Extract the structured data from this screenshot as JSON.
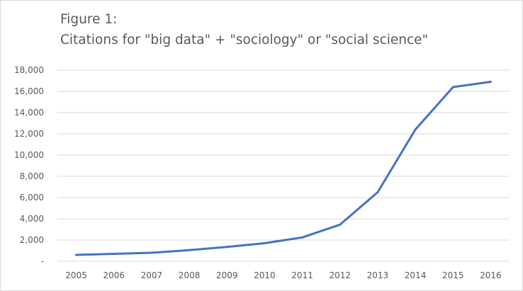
{
  "chart_data": {
    "type": "line",
    "title_lines": [
      "Figure 1:",
      "Citations for \"big data\" + \"sociology\" or \"social science\""
    ],
    "xlabel": "",
    "ylabel": "",
    "categories": [
      "2005",
      "2006",
      "2007",
      "2008",
      "2009",
      "2010",
      "2011",
      "2012",
      "2013",
      "2014",
      "2015",
      "2016"
    ],
    "values": [
      600,
      700,
      800,
      1050,
      1350,
      1700,
      2250,
      3450,
      6500,
      12400,
      16400,
      16900
    ],
    "ylim": [
      0,
      18000
    ],
    "yticks": [
      0,
      2000,
      4000,
      6000,
      8000,
      10000,
      12000,
      14000,
      16000,
      18000
    ],
    "ytick_labels": [
      "-",
      "2,000",
      "4,000",
      "6,000",
      "8,000",
      "10,000",
      "12,000",
      "14,000",
      "16,000",
      "18,000"
    ],
    "grid": true,
    "legend": "none",
    "line_color": "#4472c4",
    "grid_color": "#d9d9d9"
  }
}
